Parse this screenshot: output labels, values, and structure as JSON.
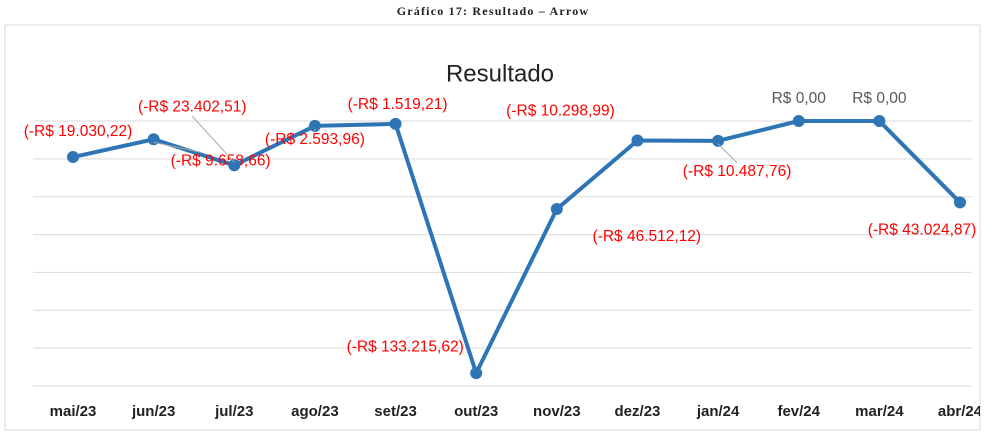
{
  "caption": "Gráfico 17: Resultado – Arrow",
  "chart_data": {
    "type": "line",
    "title": "Resultado",
    "categories": [
      "mai/23",
      "jun/23",
      "jul/23",
      "ago/23",
      "set/23",
      "out/23",
      "nov/23",
      "dez/23",
      "jan/24",
      "fev/24",
      "mar/24",
      "abr/24"
    ],
    "series": [
      {
        "name": "Resultado",
        "color": "#2e75b6",
        "values": [
          -19030.22,
          -9658.66,
          -23402.51,
          -2593.96,
          -1519.21,
          -133215.62,
          -46512.12,
          -10298.99,
          -10487.76,
          0,
          0,
          -43024.87
        ],
        "value_labels": [
          "(-R$ 19.030,22)",
          "(-R$ 9.658,66)",
          "(-R$ 23.402,51)",
          "(-R$ 2.593,96)",
          "(-R$ 1.519,21)",
          "(-R$ 133.215,62)",
          "(-R$ 46.512,12)",
          "(-R$ 10.298,99)",
          "(-R$ 10.487,76)",
          "R$ 0,00",
          "R$ 0,00",
          "(-R$ 43.024,87)"
        ]
      }
    ],
    "ylim": [
      -140000,
      0
    ],
    "yticks": [
      -140000,
      -120000,
      -100000,
      -80000,
      -60000,
      -40000,
      -20000,
      0
    ],
    "grid": true
  }
}
